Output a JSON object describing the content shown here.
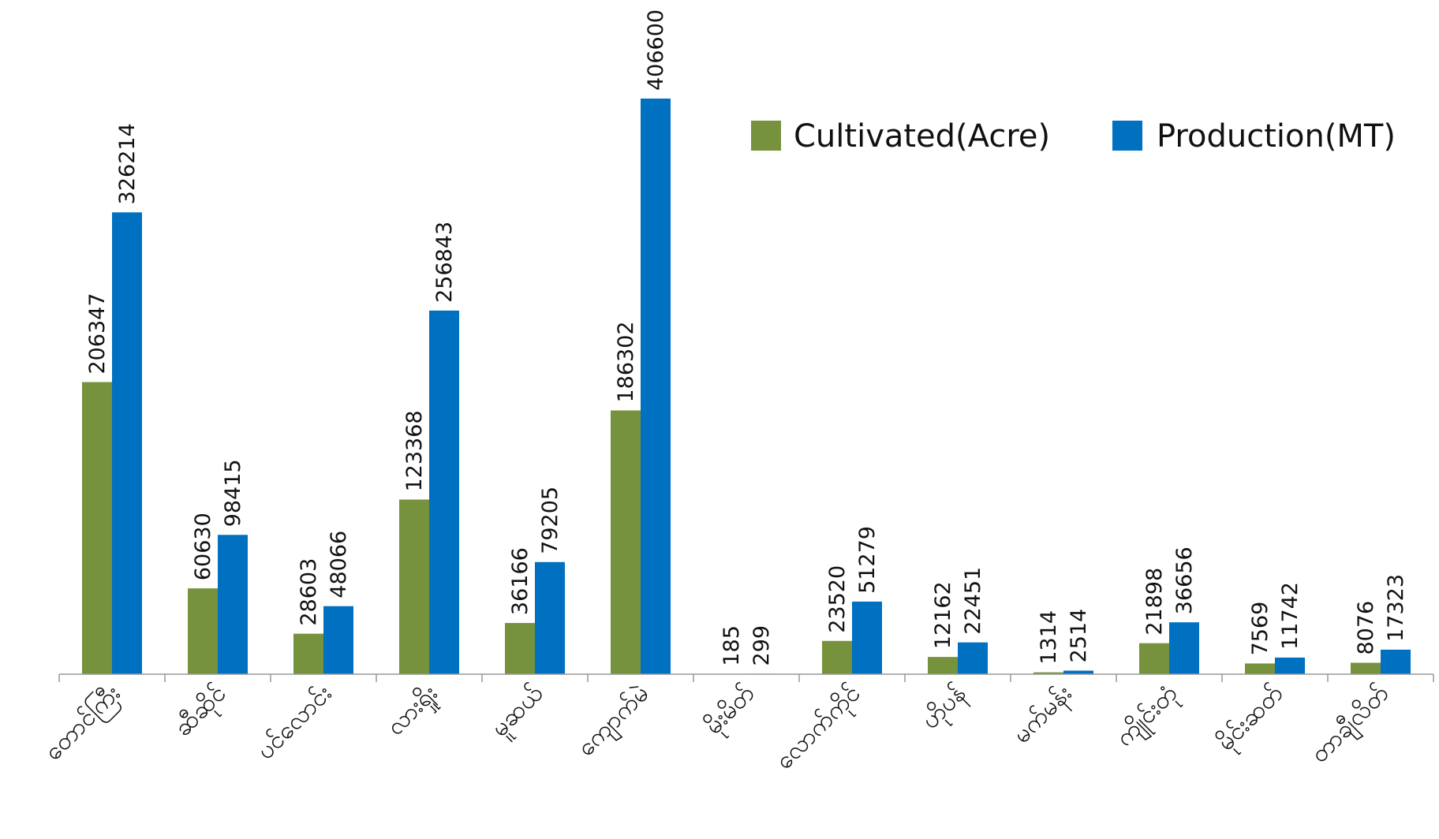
{
  "chart_data": {
    "type": "bar",
    "categories": [
      "တောင်ကြီး",
      "ဆီဆိုင်",
      "ပင်လောင်း",
      "လားရှိုး",
      "မူဆယ်",
      "ကျောက်မဲ",
      "မိုးမိတ်",
      "လောက်ကိုင်",
      "ဟိုပန်",
      "မက်မန်း",
      "ကျိုင်းတုံ",
      "မိုင်းဆတ်",
      "တာချီလိတ်"
    ],
    "series": [
      {
        "name": "Cultivated(Acre)",
        "color": "#76923c",
        "values": [
          206347,
          60630,
          28603,
          123368,
          36166,
          186302,
          185,
          23520,
          12162,
          1314,
          21898,
          7569,
          8076
        ]
      },
      {
        "name": "Production(MT)",
        "color": "#0070c0",
        "values": [
          326214,
          98415,
          48066,
          256843,
          79205,
          406600,
          299,
          51279,
          22451,
          2514,
          36656,
          11742,
          17323
        ]
      }
    ],
    "ylim": [
      0,
      406600
    ],
    "legend_position": "top-right",
    "grid": false,
    "data_labels": true,
    "axis_color": "#999999"
  }
}
